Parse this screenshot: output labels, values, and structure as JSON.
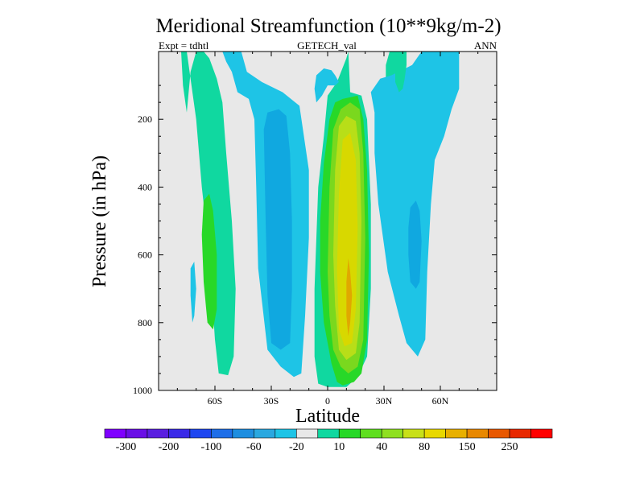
{
  "chart_data": {
    "type": "contour",
    "title": "Meridional Streamfunction (10**9kg/m-2)",
    "left_subtitle": "Expt = tdhtl",
    "center_subtitle": "GETECH_val",
    "right_subtitle": "ANN",
    "xlabel": "Latitude",
    "ylabel": "Pressure (in hPa)",
    "xlim": [
      -90,
      90
    ],
    "ylim": [
      0,
      1000
    ],
    "y_inverted": true,
    "x_ticks": [
      {
        "value": -60,
        "label": "60S"
      },
      {
        "value": -30,
        "label": "30S"
      },
      {
        "value": 0,
        "label": "0"
      },
      {
        "value": 30,
        "label": "30N"
      },
      {
        "value": 60,
        "label": "60N"
      }
    ],
    "y_ticks": [
      {
        "value": 200,
        "label": "200"
      },
      {
        "value": 400,
        "label": "400"
      },
      {
        "value": 600,
        "label": "600"
      },
      {
        "value": 800,
        "label": "800"
      },
      {
        "value": 1000,
        "label": "1000"
      }
    ],
    "missing_value_color": "#e8e8e8",
    "colorbar": {
      "colors": [
        "#7f00ff",
        "#6a0fe6",
        "#5a1fe0",
        "#3a2ae8",
        "#1e46f0",
        "#1e6ee8",
        "#1e8ee0",
        "#2aa8e0",
        "#1ec4e6",
        "#e8e8e8",
        "#10d8a0",
        "#28d828",
        "#5fdf1f",
        "#8fe020",
        "#c8e018",
        "#e8d800",
        "#e8b000",
        "#e88800",
        "#e85800",
        "#e82800",
        "#ff0000"
      ],
      "labels": [
        {
          "after_box": 1,
          "text": "-300"
        },
        {
          "after_box": 3,
          "text": "-200"
        },
        {
          "after_box": 5,
          "text": "-100"
        },
        {
          "after_box": 7,
          "text": "-60"
        },
        {
          "after_box": 9,
          "text": "-20"
        },
        {
          "after_box": 11,
          "text": "10"
        },
        {
          "after_box": 13,
          "text": "40"
        },
        {
          "after_box": 15,
          "text": "80"
        },
        {
          "after_box": 17,
          "text": "150"
        },
        {
          "after_box": 19,
          "text": "250"
        }
      ]
    },
    "contour_regions": [
      {
        "level": 10,
        "color": "#10d8a0",
        "points": [
          [
            -78,
            0
          ],
          [
            -75,
            0
          ],
          [
            -73,
            80
          ],
          [
            -70,
            200
          ],
          [
            -67,
            400
          ],
          [
            -63,
            600
          ],
          [
            -60,
            850
          ],
          [
            -58,
            950
          ],
          [
            -53,
            955
          ],
          [
            -50,
            900
          ],
          [
            -49,
            700
          ],
          [
            -51,
            500
          ],
          [
            -54,
            300
          ],
          [
            -56,
            150
          ],
          [
            -59,
            80
          ],
          [
            -63,
            20
          ],
          [
            -66,
            0
          ],
          [
            -70,
            0
          ],
          [
            -73,
            60
          ],
          [
            -75,
            180
          ],
          [
            -77,
            100
          ]
        ]
      },
      {
        "level": 40,
        "color": "#28d828",
        "points": [
          [
            -66,
            440
          ],
          [
            -63,
            420
          ],
          [
            -61,
            470
          ],
          [
            -59,
            600
          ],
          [
            -59,
            760
          ],
          [
            -61,
            820
          ],
          [
            -64,
            800
          ],
          [
            -66,
            680
          ],
          [
            -67,
            540
          ]
        ]
      },
      {
        "level": 10,
        "color": "#10d8a0",
        "points": [
          [
            -5,
            400
          ],
          [
            -2,
            250
          ],
          [
            0,
            130
          ],
          [
            5,
            90
          ],
          [
            10,
            20
          ],
          [
            11,
            0
          ],
          [
            12,
            120
          ],
          [
            18,
            130
          ],
          [
            21,
            200
          ],
          [
            23,
            450
          ],
          [
            23,
            700
          ],
          [
            21,
            900
          ],
          [
            16,
            960
          ],
          [
            10,
            990
          ],
          [
            0,
            990
          ],
          [
            -5,
            980
          ],
          [
            -7,
            900
          ],
          [
            -7,
            700
          ]
        ]
      },
      {
        "level": 40,
        "color": "#28d828",
        "points": [
          [
            -4,
            500
          ],
          [
            -2,
            330
          ],
          [
            1,
            200
          ],
          [
            4,
            150
          ],
          [
            8,
            140
          ],
          [
            16,
            130
          ],
          [
            19,
            200
          ],
          [
            21,
            350
          ],
          [
            22,
            600
          ],
          [
            21,
            850
          ],
          [
            18,
            950
          ],
          [
            14,
            975
          ],
          [
            8,
            985
          ],
          [
            5,
            975
          ],
          [
            2,
            920
          ],
          [
            -2,
            800
          ],
          [
            -4,
            650
          ]
        ]
      },
      {
        "level": 60,
        "color": "#7ad81e",
        "points": [
          [
            0,
            650
          ],
          [
            1,
            400
          ],
          [
            3,
            230
          ],
          [
            7,
            170
          ],
          [
            12,
            150
          ],
          [
            17,
            170
          ],
          [
            19,
            300
          ],
          [
            20,
            550
          ],
          [
            19,
            850
          ],
          [
            16,
            930
          ],
          [
            11,
            950
          ],
          [
            7,
            930
          ],
          [
            3,
            880
          ],
          [
            1,
            780
          ]
        ]
      },
      {
        "level": 80,
        "color": "#b8de18",
        "points": [
          [
            3,
            600
          ],
          [
            4,
            350
          ],
          [
            6,
            220
          ],
          [
            10,
            190
          ],
          [
            15,
            205
          ],
          [
            17,
            300
          ],
          [
            18,
            500
          ],
          [
            17,
            800
          ],
          [
            15,
            890
          ],
          [
            10,
            910
          ],
          [
            6,
            880
          ],
          [
            4,
            750
          ]
        ]
      },
      {
        "level": 100,
        "color": "#d8d800",
        "points": [
          [
            5,
            640
          ],
          [
            6,
            420
          ],
          [
            8,
            260
          ],
          [
            12,
            240
          ],
          [
            15,
            320
          ],
          [
            16,
            520
          ],
          [
            15,
            760
          ],
          [
            13,
            860
          ],
          [
            9,
            870
          ],
          [
            6,
            820
          ]
        ]
      },
      {
        "level": 150,
        "color": "#e0a800",
        "points": [
          [
            10,
            780
          ],
          [
            10,
            680
          ],
          [
            11,
            610
          ],
          [
            12,
            650
          ],
          [
            13,
            720
          ],
          [
            12,
            800
          ],
          [
            11,
            840
          ]
        ]
      },
      {
        "level": 10,
        "color": "#10d8a0",
        "points": [
          [
            33,
            0
          ],
          [
            38,
            0
          ],
          [
            37,
            30
          ],
          [
            37,
            70
          ],
          [
            34,
            100
          ],
          [
            32,
            130
          ],
          [
            31,
            120
          ],
          [
            31,
            40
          ]
        ]
      },
      {
        "level": -20,
        "color": "#1ec4e6",
        "points": [
          [
            -56,
            0
          ],
          [
            -46,
            0
          ],
          [
            -43,
            60
          ],
          [
            -35,
            90
          ],
          [
            -24,
            120
          ],
          [
            -15,
            160
          ],
          [
            -10,
            350
          ],
          [
            -10,
            550
          ],
          [
            -12,
            780
          ],
          [
            -14,
            950
          ],
          [
            -18,
            960
          ],
          [
            -25,
            930
          ],
          [
            -32,
            880
          ],
          [
            -37,
            640
          ],
          [
            -38,
            400
          ],
          [
            -39,
            200
          ],
          [
            -42,
            140
          ],
          [
            -48,
            120
          ],
          [
            -51,
            60
          ],
          [
            -54,
            30
          ]
        ]
      },
      {
        "level": -40,
        "color": "#10a8e0",
        "points": [
          [
            -34,
            230
          ],
          [
            -32,
            180
          ],
          [
            -26,
            170
          ],
          [
            -22,
            190
          ],
          [
            -20,
            300
          ],
          [
            -19,
            500
          ],
          [
            -19,
            700
          ],
          [
            -20,
            860
          ],
          [
            -25,
            880
          ],
          [
            -30,
            860
          ],
          [
            -32,
            720
          ],
          [
            -33,
            500
          ]
        ]
      },
      {
        "level": -20,
        "color": "#1ec4e6",
        "points": [
          [
            -6,
            70
          ],
          [
            -2,
            50
          ],
          [
            2,
            55
          ],
          [
            4,
            70
          ],
          [
            6,
            90
          ],
          [
            4,
            100
          ],
          [
            0,
            100
          ],
          [
            -3,
            130
          ],
          [
            -6,
            150
          ],
          [
            -7,
            110
          ]
        ]
      },
      {
        "level": -20,
        "color": "#1ec4e6",
        "points": [
          [
            25,
            180
          ],
          [
            23,
            120
          ],
          [
            28,
            80
          ],
          [
            34,
            70
          ],
          [
            45,
            40
          ],
          [
            50,
            0
          ],
          [
            70,
            0
          ],
          [
            70,
            110
          ],
          [
            66,
            170
          ],
          [
            62,
            250
          ],
          [
            57,
            320
          ],
          [
            55,
            450
          ],
          [
            53,
            650
          ],
          [
            52,
            850
          ],
          [
            48,
            900
          ],
          [
            42,
            860
          ],
          [
            38,
            780
          ],
          [
            32,
            650
          ],
          [
            27,
            450
          ],
          [
            25,
            300
          ]
        ]
      },
      {
        "level": -40,
        "color": "#10a8e0",
        "points": [
          [
            43,
            520
          ],
          [
            44,
            460
          ],
          [
            47,
            440
          ],
          [
            49,
            470
          ],
          [
            50,
            560
          ],
          [
            49,
            680
          ],
          [
            47,
            700
          ],
          [
            44,
            680
          ],
          [
            43,
            600
          ]
        ]
      },
      {
        "level": -20,
        "color": "#1ec4e6",
        "points": [
          [
            -73,
            640
          ],
          [
            -71,
            620
          ],
          [
            -70,
            700
          ],
          [
            -71,
            780
          ],
          [
            -72,
            800
          ],
          [
            -73,
            720
          ]
        ]
      },
      {
        "level": 10,
        "color": "#10d8a0",
        "points": [
          [
            36,
            20
          ],
          [
            38,
            0
          ],
          [
            42,
            0
          ],
          [
            42,
            40
          ],
          [
            41,
            80
          ],
          [
            40,
            110
          ],
          [
            38,
            120
          ],
          [
            36,
            90
          ],
          [
            36,
            50
          ]
        ]
      }
    ]
  }
}
